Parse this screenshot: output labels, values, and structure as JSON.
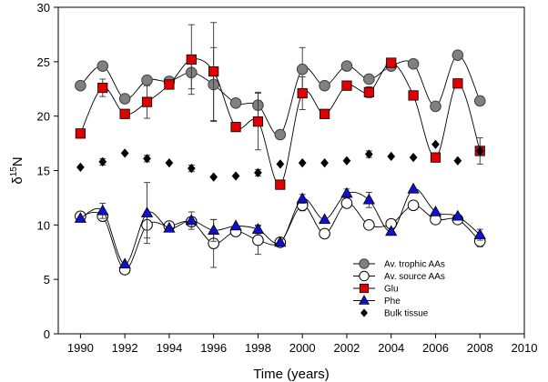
{
  "chart_data": {
    "type": "scatter",
    "xlabel": "Time (years)",
    "ylabel": "δ15N",
    "xlim": [
      1989,
      2010
    ],
    "ylim": [
      0,
      30
    ],
    "xticks": [
      1990,
      1992,
      1994,
      1996,
      1998,
      2000,
      2002,
      2004,
      2006,
      2008,
      2010
    ],
    "yticks": [
      0,
      5,
      10,
      15,
      20,
      25,
      30
    ],
    "legend_position": "bottom-right",
    "series": [
      {
        "name": "Av. trophic AAs",
        "marker": "circle",
        "fill": "#808080",
        "stroke": "#404040",
        "line": true,
        "x": [
          1990,
          1991,
          1992,
          1993,
          1994,
          1995,
          1996,
          1997,
          1998,
          1999,
          2000,
          2001,
          2002,
          2003,
          2004,
          2005,
          2006,
          2007,
          2008
        ],
        "y": [
          22.8,
          24.6,
          21.6,
          23.3,
          23.2,
          24.0,
          22.9,
          21.2,
          21.0,
          18.3,
          24.3,
          22.8,
          24.6,
          23.4,
          24.6,
          24.8,
          20.9,
          25.6,
          21.4
        ],
        "err": [
          0,
          0.3,
          0,
          0,
          0,
          1.5,
          3.4,
          0,
          1.2,
          0,
          2.0,
          0,
          0,
          0.4,
          0,
          0,
          0,
          0,
          0.4
        ]
      },
      {
        "name": "Av. source AAs",
        "marker": "circle",
        "fill": "#ffffff",
        "stroke": "#000000",
        "line": true,
        "x": [
          1990,
          1991,
          1992,
          1993,
          1994,
          1995,
          1996,
          1997,
          1998,
          1999,
          2000,
          2001,
          2002,
          2003,
          2004,
          2005,
          2006,
          2007,
          2008
        ],
        "y": [
          10.8,
          10.8,
          5.9,
          10.0,
          9.9,
          10.3,
          8.3,
          9.4,
          8.6,
          8.4,
          11.8,
          9.2,
          12.0,
          10.0,
          10.1,
          11.8,
          10.5,
          10.5,
          8.5
        ],
        "err": [
          0,
          0,
          0,
          1.2,
          0,
          0,
          2.2,
          0,
          1.3,
          0,
          0.5,
          0,
          0,
          0,
          0,
          0,
          0,
          0,
          0.5
        ]
      },
      {
        "name": "Glu",
        "marker": "square",
        "fill": "#e00000",
        "stroke": "#000000",
        "line": true,
        "x": [
          1990,
          1991,
          1992,
          1993,
          1994,
          1995,
          1996,
          1997,
          1998,
          1999,
          2000,
          2001,
          2002,
          2003,
          2004,
          2005,
          2006,
          2007,
          2008
        ],
        "y": [
          18.4,
          22.6,
          20.2,
          21.3,
          22.9,
          25.2,
          24.1,
          19.0,
          19.5,
          13.7,
          22.1,
          20.2,
          22.8,
          22.2,
          24.9,
          21.9,
          16.2,
          23.0,
          16.8
        ],
        "err": [
          0,
          0.8,
          0,
          1.5,
          0,
          3.2,
          4.5,
          0,
          2.6,
          0,
          1.5,
          0,
          0,
          0.5,
          0,
          0,
          0,
          0,
          1.2
        ]
      },
      {
        "name": "Phe",
        "marker": "triangle",
        "fill": "#1010d0",
        "stroke": "#000000",
        "line": true,
        "x": [
          1990,
          1991,
          1992,
          1993,
          1994,
          1995,
          1996,
          1997,
          1998,
          1999,
          2000,
          2001,
          2002,
          2003,
          2004,
          2005,
          2006,
          2007,
          2008
        ],
        "y": [
          10.6,
          11.3,
          6.4,
          11.1,
          9.7,
          10.4,
          9.5,
          9.9,
          9.6,
          8.4,
          12.4,
          10.5,
          12.9,
          12.3,
          9.4,
          13.3,
          11.2,
          10.8,
          9.1
        ],
        "err": [
          0,
          0.7,
          0,
          2.8,
          0,
          0.8,
          1.0,
          0,
          0.4,
          0,
          0.4,
          0,
          0.4,
          0.7,
          0,
          0,
          0,
          0,
          0.5
        ]
      },
      {
        "name": "Bulk tissue",
        "marker": "diamond",
        "fill": "#000000",
        "stroke": "#000000",
        "line": false,
        "x": [
          1990,
          1991,
          1992,
          1993,
          1994,
          1995,
          1996,
          1997,
          1998,
          1999,
          2000,
          2001,
          2002,
          2003,
          2004,
          2005,
          2006,
          2007,
          2008
        ],
        "y": [
          15.3,
          15.8,
          16.6,
          16.1,
          15.7,
          15.2,
          14.4,
          14.5,
          14.8,
          15.6,
          15.7,
          15.7,
          15.9,
          16.5,
          16.3,
          16.2,
          17.4,
          15.9,
          16.8
        ],
        "err": [
          0,
          0.3,
          0,
          0.3,
          0,
          0.3,
          0,
          0,
          0.3,
          0,
          0,
          0,
          0,
          0.3,
          0,
          0,
          0,
          0,
          0.3
        ]
      }
    ]
  }
}
